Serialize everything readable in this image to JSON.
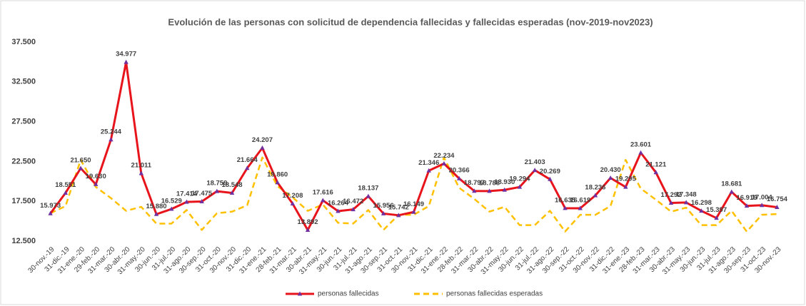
{
  "chart_data": {
    "type": "line",
    "title": "Evolución de las personas con solicitud de dependencia fallecidas  y  fallecidas esperadas (nov-2019-nov2023)",
    "categories": [
      "30-nov.-19",
      "31-dic.-19",
      "31-ene.-20",
      "29-feb.-20",
      "31-mar.-20",
      "30-abr.-20",
      "31-may.-20",
      "30-jun.-20",
      "31-jul.-20",
      "31-ago.-20",
      "30-sep.-20",
      "31-oct.-20",
      "30-nov.-20",
      "31-dic.-20",
      "31-ene.-21",
      "28-feb.-21",
      "31-mar.-21",
      "30-abr.-21",
      "31-may.-21",
      "30-jun.-21",
      "31-jul.-21",
      "31-ago.-21",
      "30-sep.-21",
      "31-oct.-21",
      "30-nov.-21",
      "31-dic.-21",
      "31-ene.-22",
      "28-feb.-22",
      "31-mar.-22",
      "30-abr.-22",
      "31-may.-22",
      "30-jun.-22",
      "31-jul.-22",
      "31-ago.-22",
      "30-sep.-22",
      "31-oct.-22",
      "30-nov.-22",
      "31-dic.-22",
      "31-ene.-23",
      "28-feb.-23",
      "31-mar.-23",
      "30-abr.-23",
      "31-may.-23",
      "30-jun.-23",
      "31-jul.-23",
      "31-ago.-23",
      "30-sep.-23",
      "31-oct.-23",
      "30-nov.-23"
    ],
    "series": [
      {
        "name": "personas fallecidas",
        "color": "#e8141b",
        "marker_color": "#7030a0",
        "dash": false,
        "values": [
          15973,
          18551,
          21650,
          19630,
          25244,
          34977,
          21011,
          15880,
          16529,
          17414,
          17475,
          18759,
          18548,
          21664,
          24207,
          19860,
          17208,
          13892,
          17616,
          16264,
          16472,
          18137,
          15956,
          15742,
          16149,
          21346,
          22234,
          20366,
          18797,
          18788,
          18930,
          19294,
          21403,
          20269,
          16635,
          16619,
          18236,
          20430,
          19295,
          23601,
          21121,
          17292,
          17348,
          16298,
          15397,
          18681,
          16919,
          17004,
          16754
        ],
        "value_labels": [
          "15.973",
          "18.551",
          "21.650",
          "19.630",
          "25.244",
          "34.977",
          "21.011",
          "15.880",
          "16.529",
          "17.414",
          "17.475",
          "18.759",
          "18.548",
          "21.664",
          "24.207",
          "19.860",
          "17.208",
          "13.892",
          "17.616",
          "16.264",
          "16.472",
          "18.137",
          "15.956",
          "15.742",
          "16.149",
          "21.346",
          "22.234",
          "20.366",
          "18.797",
          "18.788",
          "18.930",
          "19.294",
          "21.403",
          "20.269",
          "16.635",
          "16.619",
          "18.236",
          "20.430",
          "19.295",
          "23.601",
          "21.121",
          "17.292",
          "17.348",
          "16.298",
          "15.397",
          "18.681",
          "16.919",
          "17.004",
          "16.754"
        ]
      },
      {
        "name": "personas fallecidas esperadas",
        "color": "#ffc000",
        "dash": true,
        "values": [
          16000,
          16900,
          22700,
          19300,
          17900,
          16300,
          16800,
          14700,
          14700,
          16400,
          13900,
          16000,
          16200,
          17000,
          23000,
          19400,
          18000,
          16300,
          17100,
          14800,
          14700,
          16400,
          13900,
          15800,
          15800,
          16900,
          23000,
          19200,
          17800,
          16200,
          16800,
          14500,
          14500,
          16300,
          13700,
          15800,
          15800,
          16900,
          22700,
          19100,
          17700,
          16200,
          16700,
          14500,
          14500,
          16300,
          13700,
          15800,
          15900
        ]
      }
    ],
    "ylim": [
      12500,
      37500
    ],
    "yticks": [
      {
        "value": 12500,
        "label": "12.500"
      },
      {
        "value": 17500,
        "label": "17.500"
      },
      {
        "value": 22500,
        "label": "22.500"
      },
      {
        "value": 27500,
        "label": "27.500"
      },
      {
        "value": 32500,
        "label": "32.500"
      },
      {
        "value": 37500,
        "label": "37.500"
      }
    ],
    "grid": false,
    "legend": "bottom"
  }
}
